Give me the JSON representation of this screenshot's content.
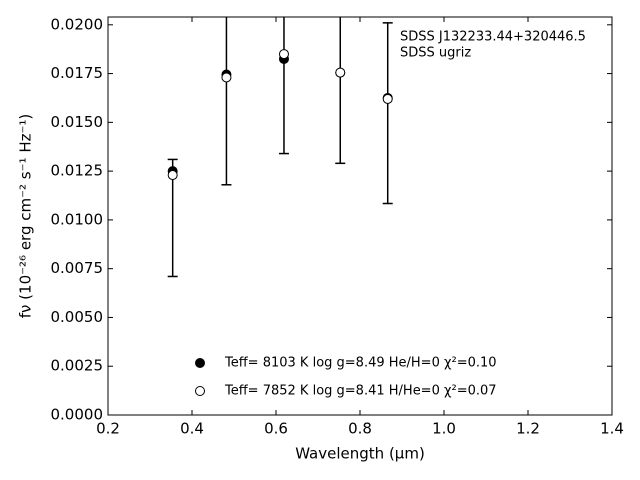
{
  "chart_data": {
    "type": "scatter",
    "xlabel": "Wavelength (μm)",
    "ylabel": "fν (10⁻²⁶ erg cm⁻² s⁻¹ Hz⁻¹)",
    "annotations": [
      "SDSS J132233.44+320446.5",
      "SDSS ugriz"
    ],
    "x": [
      0.354,
      0.482,
      0.619,
      0.753,
      0.866
    ],
    "series": [
      {
        "name": "Teff=  8103 K  log g=8.49  He/H=0  χ²=0.10",
        "marker": "filled",
        "color": "#000000",
        "values": [
          0.0125,
          0.01745,
          0.01825,
          0.01755,
          0.01625
        ]
      },
      {
        "name": "Teff=  7852 K  log g=8.41  H/He=0  χ²=0.07",
        "marker": "open",
        "color": "#000000",
        "values": [
          0.0123,
          0.0173,
          0.0185,
          0.01755,
          0.0162
        ]
      }
    ],
    "observed": {
      "values": [
        0.0101,
        0.0176,
        0.0184,
        0.0177,
        0.01547
      ],
      "errors": [
        0.003,
        0.0058,
        0.005,
        0.0048,
        0.00463
      ]
    },
    "xlim": [
      0.2,
      1.4
    ],
    "xticks": [
      0.2,
      0.4,
      0.6,
      0.8,
      {
        "value": 1,
        "label": "1.0"
      },
      1.2,
      1.4
    ],
    "ylim": [
      0,
      0.0204
    ],
    "yticks": [
      {
        "value": 0,
        "label": "0.0000"
      },
      0.0025,
      {
        "value": 0.005,
        "label": "0.0050"
      },
      0.0075,
      {
        "value": 0.01,
        "label": "0.0100"
      },
      0.0125,
      {
        "value": 0.015,
        "label": "0.0150"
      },
      0.0175,
      {
        "value": 0.02,
        "label": "0.0200"
      }
    ]
  }
}
